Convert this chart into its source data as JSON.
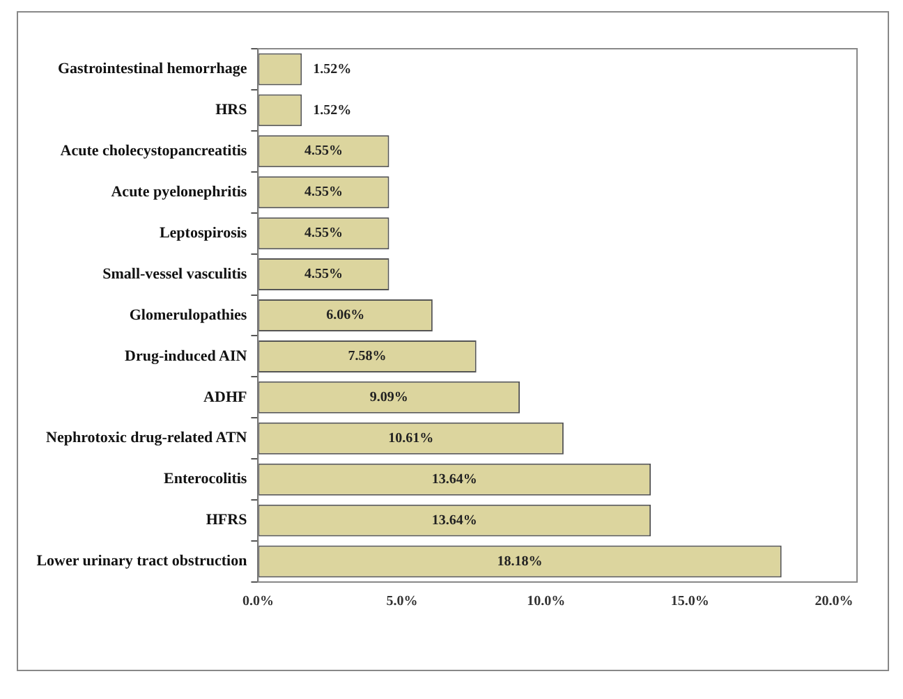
{
  "chart_data": {
    "type": "bar",
    "orientation": "horizontal",
    "categories": [
      "Gastrointestinal hemorrhage",
      "HRS",
      "Acute cholecystopancreatitis",
      "Acute pyelonephritis",
      "Leptospirosis",
      "Small-vessel vasculitis",
      "Glomerulopathies",
      "Drug-induced AIN",
      "ADHF",
      "Nephrotoxic drug-related ATN",
      "Enterocolitis",
      "HFRS",
      "Lower urinary tract obstruction"
    ],
    "values": [
      1.52,
      1.52,
      4.55,
      4.55,
      4.55,
      4.55,
      6.06,
      7.58,
      9.09,
      10.61,
      13.64,
      13.64,
      18.18
    ],
    "value_labels": [
      "1.52%",
      "1.52%",
      "4.55%",
      "4.55%",
      "4.55%",
      "4.55%",
      "6.06%",
      "7.58%",
      "9.09%",
      "10.61%",
      "13.64%",
      "13.64%",
      "18.18%"
    ],
    "color": "#dcd59e",
    "xlim": [
      0,
      20.8
    ],
    "xticks": [
      {
        "value": 0,
        "label": "0.0%"
      },
      {
        "value": 5,
        "label": "5.0%"
      },
      {
        "value": 10,
        "label": "10.0%"
      },
      {
        "value": 15,
        "label": "15.0%"
      },
      {
        "value": 20,
        "label": "20.0%"
      }
    ],
    "grid": false,
    "legend": false
  }
}
